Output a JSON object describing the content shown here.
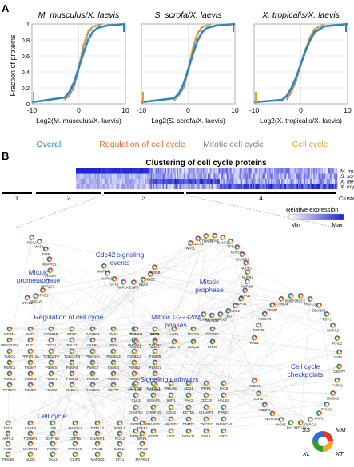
{
  "panel_a": {
    "label": "A",
    "y_axis_label": "Fraction of proteins",
    "y_ticks": [
      "0",
      "0.2",
      "0.4",
      "0.6",
      "0.8",
      "1"
    ],
    "plots": [
      {
        "title": "M. musculus/X. laevis",
        "xlabel": "Log2(M. musculus/X. laevis)",
        "x_ticks": [
          "-10",
          "0",
          "10"
        ]
      },
      {
        "title": "S. scrofa/X. laevis",
        "xlabel": "Log2(S. scrofa/X. laevis)",
        "x_ticks": [
          "-10",
          "0",
          "10"
        ]
      },
      {
        "title": "X. tropicalis/X. laevis",
        "xlabel": "Log2(X. tropicalis/X. laevis)",
        "x_ticks": [
          "-10",
          "0",
          "10"
        ]
      }
    ],
    "legend": [
      {
        "label": "Overall",
        "color": "#2e86c1"
      },
      {
        "label": "Regulation of cell cycle",
        "color": "#e36b2c"
      },
      {
        "label": "Mitotic cell cycle",
        "color": "#808080"
      },
      {
        "label": "Cell cycle",
        "color": "#e0a030"
      }
    ]
  },
  "panel_b": {
    "label": "B",
    "title": "Clustering of cell cycle proteins",
    "rows": [
      "M. musculus",
      "S. scrofa",
      "X. laevis",
      "X. tropicalis"
    ],
    "clusters": [
      "1",
      "2",
      "3",
      "4"
    ],
    "cluster_word": "Cluster",
    "scale_title": "Relative expression",
    "scale_min": "Min",
    "scale_max": "Max"
  },
  "network": {
    "groups": [
      {
        "name": "Cdc42 signaling events",
        "lines": [
          "Cdc42 signaling",
          "events"
        ]
      },
      {
        "name": "Mitotic prometaphase",
        "lines": [
          "Mitotic",
          "prometaphase"
        ]
      },
      {
        "name": "Mitotic prophase",
        "lines": [
          "Mitotic",
          "prophase"
        ]
      },
      {
        "name": "Regulation of cell cycle",
        "lines": [
          "Regulation of cell cycle"
        ]
      },
      {
        "name": "Mitotic G2-G2/M phases",
        "lines": [
          "Mitotic G2-G2/M",
          "phases"
        ]
      },
      {
        "name": "Cell cycle checkpoints",
        "lines": [
          "Cell cycle",
          "checkpoints"
        ]
      },
      {
        "name": "Signaling pathways",
        "lines": [
          "Signaling pathways"
        ]
      },
      {
        "name": "Cell cycle",
        "lines": [
          "Cell cycle"
        ]
      }
    ],
    "gene_labels": [
      "RCC2",
      "WAPL",
      "NIS9",
      "MAPRE1",
      "PDS5A",
      "PPP1CC",
      "STAG1",
      "SMC1A",
      "STAG2",
      "PDS5B",
      "NUDC",
      "SKA3",
      "CLIP3",
      "MAP2K6",
      "CFL1",
      "MAPK14",
      "MAP2K1",
      "WASL",
      "CDC42",
      "CTNNB1",
      "SEH1",
      "BANF1",
      "TPR",
      "NUP160",
      "RANBP2",
      "NUP85",
      "NUP93",
      "NUP205",
      "NUP37",
      "NUP35",
      "VRK1",
      "EMD",
      "NUP188",
      "NUP133",
      "NUP62",
      "RAE1",
      "NUP43",
      "YWHAG",
      "TFDP1",
      "GTPBP4",
      "RBBP7",
      "RCC1",
      "HCFC1",
      "DDX39B",
      "TGV1",
      "MAPK3",
      "PCID2",
      "OSBL1",
      "CENPV",
      "FARP2",
      "HMGA2",
      "PTKDC",
      "PAF1",
      "PLRG1",
      "MECP2",
      "PHL1",
      "NCK1",
      "NOTCH1",
      "RBBP4",
      "CDT1",
      "CCDC1",
      "MRE11",
      "CLIP1",
      "RPRD1B",
      "DTCP",
      "RANBP1",
      "SMC1",
      "CUL5",
      "ELP3",
      "PPP1R12A",
      "FLG1",
      "CDC5L",
      "RPL23",
      "CKBR1",
      "NPM1",
      "PHGDH",
      "TUBA8A",
      "TUBG1",
      "PPP1R12A",
      "TUBGCP2",
      "TUBGCP3",
      "PRKACA",
      "PSMD13",
      "PSMD12",
      "PSMB5",
      "PSMC1",
      "PSMA7",
      "PSMC5",
      "PSMA4",
      "PSMC2",
      "PSMC4",
      "PSMB2",
      "PSMD1",
      "PSMC6",
      "PSMC3",
      "PSME1",
      "PSMA3",
      "PSMD3",
      "PSMF1",
      "PSMD4",
      "PSMA1",
      "RPS27A",
      "PSMD7",
      "PSMC2",
      "RAB6A",
      "RANBP3",
      "SEPT7",
      "PPP1CB",
      "KPNB1",
      "PRKAR1",
      "NIPBL",
      "AKT1",
      "MAPK1",
      "PPP3CA",
      "ESPL1",
      "BUB3",
      "CDC73",
      "CDC23",
      "RHOB",
      "STAT5B",
      "MAP4K4",
      "PRKAB2",
      "ADD1",
      "PMP1",
      "PAX6",
      "CUL3",
      "IQGAP1",
      "SKP1",
      "PAK2",
      "CDC20",
      "HAUS1",
      "CHMP1A",
      "CHMP1B",
      "CDV3",
      "DCTN1",
      "CHAMP1",
      "PPME1",
      "SRSF1",
      "SMARCB1",
      "ANKRD2",
      "DNMT1",
      "ZNF207",
      "SMARCA5",
      "PTPN1",
      "GSPT1",
      "LIG3",
      "DYNLT1",
      "EML4",
      "CRKL",
      "TSC2",
      "CAPN3",
      "NSF",
      "MAP3K1",
      "DYNLL2",
      "NDEL1",
      "TGFB1",
      "APPL2",
      "TOPBP1",
      "SUPT5H",
      "CSPN1",
      "CHAMP1"
    ],
    "species_key": {
      "top_left": "SS",
      "top_right": "MM",
      "bottom_left": "XL",
      "bottom_right": "XT"
    }
  },
  "chart_data": [
    {
      "type": "line",
      "title": "M. musculus/X. laevis",
      "xlabel": "Log2(M. musculus/X. laevis)",
      "ylabel": "Fraction of proteins",
      "xlim": [
        -10,
        10
      ],
      "ylim": [
        0,
        1
      ],
      "series": [
        {
          "name": "Overall",
          "x": [
            -10,
            -3,
            -2,
            -1,
            0,
            1,
            2,
            3,
            4,
            6,
            10
          ],
          "y": [
            0.02,
            0.08,
            0.15,
            0.27,
            0.45,
            0.63,
            0.8,
            0.9,
            0.95,
            0.98,
            1.0
          ]
        },
        {
          "name": "Regulation of cell cycle",
          "x": [
            -3,
            -2,
            -1,
            0,
            1,
            2,
            3,
            5
          ],
          "y": [
            0.05,
            0.12,
            0.22,
            0.45,
            0.72,
            0.9,
            0.97,
            1.0
          ]
        },
        {
          "name": "Mitotic cell cycle",
          "x": [
            -3,
            -2,
            -1,
            0,
            1,
            2,
            3,
            5
          ],
          "y": [
            0.05,
            0.1,
            0.2,
            0.42,
            0.7,
            0.88,
            0.96,
            1.0
          ]
        },
        {
          "name": "Cell cycle",
          "x": [
            -3,
            -2,
            -1,
            0,
            1,
            2,
            3,
            5
          ],
          "y": [
            0.06,
            0.13,
            0.24,
            0.48,
            0.75,
            0.91,
            0.97,
            1.0
          ]
        }
      ]
    },
    {
      "type": "line",
      "title": "S. scrofa/X. laevis",
      "xlabel": "Log2(S. scrofa/X. laevis)",
      "ylabel": "Fraction of proteins",
      "xlim": [
        -10,
        10
      ],
      "ylim": [
        0,
        1
      ],
      "series": [
        {
          "name": "Overall",
          "x": [
            -10,
            -3,
            -2,
            -1,
            0,
            1,
            2,
            3,
            4,
            6,
            10
          ],
          "y": [
            0.02,
            0.07,
            0.13,
            0.25,
            0.43,
            0.62,
            0.79,
            0.9,
            0.95,
            0.98,
            1.0
          ]
        },
        {
          "name": "Regulation of cell cycle",
          "x": [
            -3,
            -2,
            -1,
            0,
            1,
            2,
            3,
            5
          ],
          "y": [
            0.05,
            0.11,
            0.2,
            0.42,
            0.7,
            0.89,
            0.96,
            1.0
          ]
        },
        {
          "name": "Mitotic cell cycle",
          "x": [
            -3,
            -2,
            -1,
            0,
            1,
            2,
            3,
            5
          ],
          "y": [
            0.04,
            0.1,
            0.19,
            0.4,
            0.68,
            0.87,
            0.96,
            1.0
          ]
        },
        {
          "name": "Cell cycle",
          "x": [
            -3,
            -2,
            -1,
            0,
            1,
            2,
            3,
            5
          ],
          "y": [
            0.05,
            0.12,
            0.22,
            0.45,
            0.72,
            0.9,
            0.97,
            1.0
          ]
        }
      ]
    },
    {
      "type": "line",
      "title": "X. tropicalis/X. laevis",
      "xlabel": "Log2(X. tropicalis/X. laevis)",
      "ylabel": "Fraction of proteins",
      "xlim": [
        -10,
        10
      ],
      "ylim": [
        0,
        1
      ],
      "series": [
        {
          "name": "Overall",
          "x": [
            -10,
            -4,
            -3,
            -2,
            -1,
            0,
            1,
            2,
            3,
            5,
            10
          ],
          "y": [
            0.02,
            0.05,
            0.1,
            0.2,
            0.33,
            0.5,
            0.66,
            0.8,
            0.9,
            0.97,
            1.0
          ]
        },
        {
          "name": "Regulation of cell cycle",
          "x": [
            -3,
            -2,
            -1,
            0,
            1,
            2,
            3,
            5
          ],
          "y": [
            0.06,
            0.15,
            0.3,
            0.5,
            0.68,
            0.84,
            0.94,
            1.0
          ]
        },
        {
          "name": "Mitotic cell cycle",
          "x": [
            -3,
            -2,
            -1,
            0,
            1,
            2,
            3,
            5
          ],
          "y": [
            0.05,
            0.14,
            0.28,
            0.48,
            0.66,
            0.82,
            0.93,
            1.0
          ]
        },
        {
          "name": "Cell cycle",
          "x": [
            -3,
            -2,
            -1,
            0,
            1,
            2,
            3,
            5
          ],
          "y": [
            0.07,
            0.16,
            0.31,
            0.52,
            0.7,
            0.85,
            0.95,
            1.0
          ]
        }
      ]
    }
  ]
}
